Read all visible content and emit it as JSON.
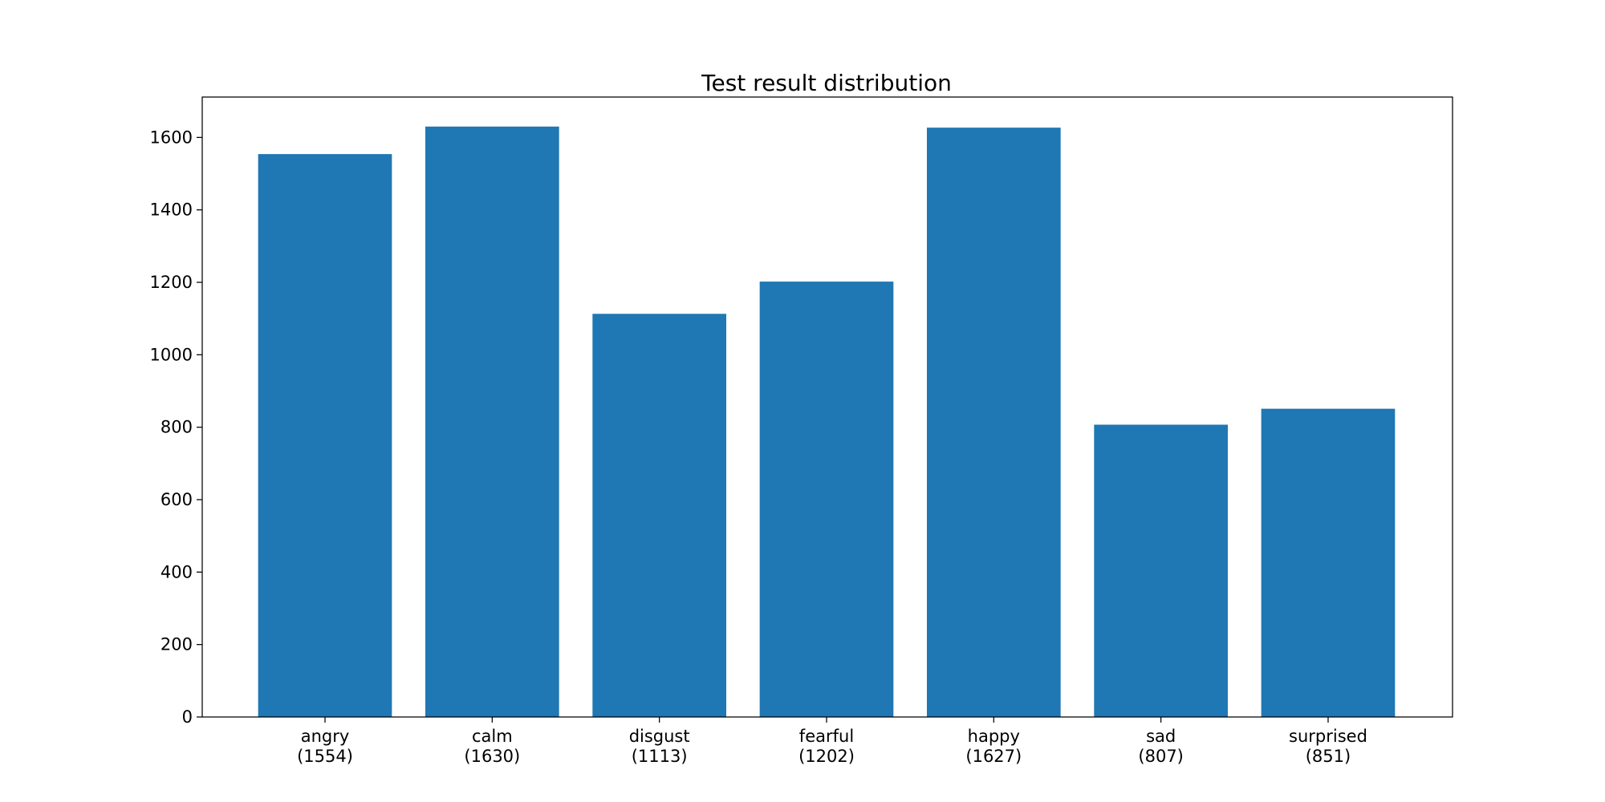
{
  "chart_data": {
    "type": "bar",
    "title": "Test result distribution",
    "xlabel": "",
    "ylabel": "",
    "categories": [
      "angry",
      "calm",
      "disgust",
      "fearful",
      "happy",
      "sad",
      "surprised"
    ],
    "tick_labels": [
      [
        "angry",
        "(1554)"
      ],
      [
        "calm",
        "(1630)"
      ],
      [
        "disgust",
        "(1113)"
      ],
      [
        "fearful",
        "(1202)"
      ],
      [
        "happy",
        "(1627)"
      ],
      [
        "sad",
        "(807)"
      ],
      [
        "surprised",
        "(851)"
      ]
    ],
    "values": [
      1554,
      1630,
      1113,
      1202,
      1627,
      807,
      851
    ],
    "ylim": [
      0,
      1711.5
    ],
    "yticks": [
      0,
      200,
      400,
      600,
      800,
      1000,
      1200,
      1400,
      1600
    ],
    "grid": false,
    "legend": "none",
    "bar_color": "#1f77b4"
  }
}
